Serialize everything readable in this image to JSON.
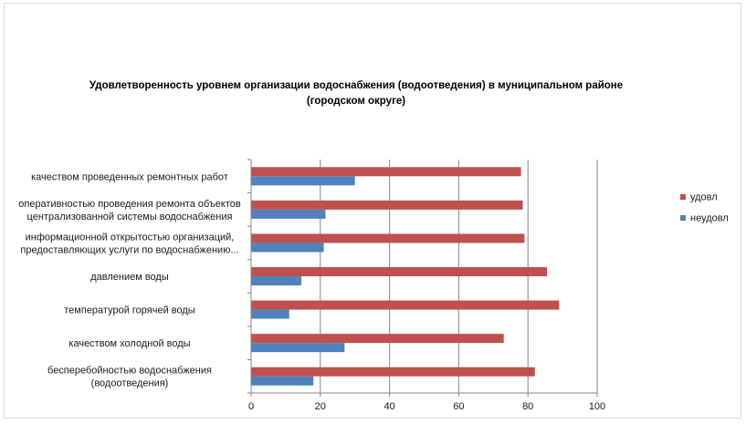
{
  "chart_data": {
    "type": "bar",
    "orientation": "horizontal",
    "title": "Удовлетворенность уровнем организации водоснабжения (водоотведения) в муниципальном районе (городском округе)",
    "title_lines": [
      "Удовлетворенность уровнем организации водоснабжения (водоотведения) в муниципальном районе",
      "(городском округе)"
    ],
    "categories": [
      [
        "качеством проведенных ремонтных работ"
      ],
      [
        "оперативностью проведения ремонта объектов",
        "централизованной системы водоснабжения"
      ],
      [
        "информационной открытостью организаций,",
        "предоставляющих услуги по водоснабжению..."
      ],
      [
        "давлением воды"
      ],
      [
        "температурой горячей воды"
      ],
      [
        "качеством холодной воды"
      ],
      [
        "бесперебойностью водоснабжения",
        "(водоотведения)"
      ]
    ],
    "series": [
      {
        "name": "удовл",
        "color": "#c0504d",
        "values": [
          78,
          78.5,
          79,
          85.5,
          89,
          73,
          82
        ]
      },
      {
        "name": "неудовл",
        "color": "#4f81bd",
        "values": [
          30,
          21.5,
          21,
          14.5,
          11,
          27,
          18
        ]
      }
    ],
    "xlim": [
      0,
      100
    ],
    "xticks": [
      0,
      20,
      40,
      60,
      80,
      100
    ],
    "grid": true,
    "legend_position": "right"
  }
}
